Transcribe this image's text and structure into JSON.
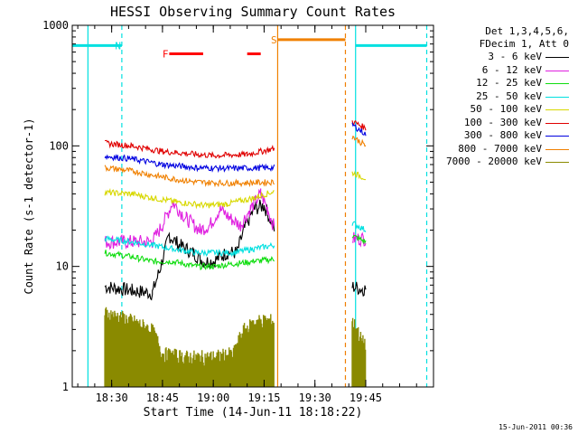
{
  "chart_data": {
    "type": "line",
    "title": "HESSI Observing Summary Count Rates",
    "xlabel": "Start Time (14-Jun-11 18:18:22)",
    "ylabel": "Count Rate (s-1 detector-1)",
    "yscale": "log",
    "ylim": [
      1,
      1000
    ],
    "ytick_values": [
      1,
      10,
      100,
      1000
    ],
    "ytick_labels": [
      "1",
      "10",
      "100",
      "1000"
    ],
    "xlim": [
      "18:18:22",
      "20:05:00"
    ],
    "xtick_labels": [
      "18:30",
      "18:45",
      "19:00",
      "19:15",
      "19:30",
      "19:45"
    ],
    "xtick_values": [
      "18:30",
      "18:45",
      "19:00",
      "19:15",
      "19:30",
      "19:45"
    ],
    "legend_header": [
      "Det 1,3,4,5,6,",
      "FDecim 1, Att 0"
    ],
    "legend_position": "right",
    "series": [
      {
        "name": "3 - 6 keV",
        "color": "#000000",
        "segments": [
          [
            [
              "18:28",
              "6.8"
            ],
            [
              "18:36",
              "6.3"
            ],
            [
              "18:42",
              "6.0"
            ],
            [
              "18:44",
              "9.0"
            ],
            [
              "18:47",
              "18"
            ],
            [
              "18:50",
              "15"
            ],
            [
              "18:54",
              "13"
            ],
            [
              "18:57",
              "11"
            ],
            [
              "19:00",
              "11"
            ],
            [
              "19:04",
              "13"
            ],
            [
              "19:07",
              "13"
            ],
            [
              "19:09",
              "20"
            ],
            [
              "19:12",
              "30"
            ],
            [
              "19:15",
              "32"
            ],
            [
              "19:17",
              "24"
            ],
            [
              "19:18",
              "19"
            ]
          ],
          [
            [
              "19:41",
              "6.8"
            ],
            [
              "19:44",
              "6.5"
            ],
            [
              "19:45",
              "6.5"
            ]
          ]
        ]
      },
      {
        "name": "6 - 12 keV",
        "color": "#e020e0",
        "segments": [
          [
            [
              "18:28",
              "16"
            ],
            [
              "18:36",
              "16"
            ],
            [
              "18:42",
              "16"
            ],
            [
              "18:45",
              "22"
            ],
            [
              "18:48",
              "34"
            ],
            [
              "18:52",
              "25"
            ],
            [
              "18:56",
              "20"
            ],
            [
              "18:59",
              "22"
            ],
            [
              "19:02",
              "30"
            ],
            [
              "19:05",
              "25"
            ],
            [
              "19:08",
              "22"
            ],
            [
              "19:11",
              "30"
            ],
            [
              "19:14",
              "40"
            ],
            [
              "19:16",
              "30"
            ],
            [
              "19:18",
              "21"
            ]
          ],
          [
            [
              "19:41",
              "17"
            ],
            [
              "19:45",
              "17"
            ]
          ]
        ]
      },
      {
        "name": "12 - 25 keV",
        "color": "#10dd10",
        "segments": [
          [
            [
              "18:28",
              "13"
            ],
            [
              "18:36",
              "12"
            ],
            [
              "18:42",
              "11"
            ],
            [
              "18:48",
              "11"
            ],
            [
              "18:55",
              "10"
            ],
            [
              "19:00",
              "10"
            ],
            [
              "19:06",
              "10.5"
            ],
            [
              "19:12",
              "11"
            ],
            [
              "19:18",
              "11.5"
            ]
          ],
          [
            [
              "19:41",
              "18"
            ],
            [
              "19:45",
              "16"
            ]
          ]
        ]
      },
      {
        "name": "25 - 50 keV",
        "color": "#00e0e0",
        "segments": [
          [
            [
              "18:28",
              "17"
            ],
            [
              "18:36",
              "16"
            ],
            [
              "18:42",
              "15"
            ],
            [
              "18:48",
              "14"
            ],
            [
              "18:55",
              "13"
            ],
            [
              "19:00",
              "13"
            ],
            [
              "19:06",
              "13"
            ],
            [
              "19:12",
              "14"
            ],
            [
              "19:18",
              "15"
            ]
          ],
          [
            [
              "19:41",
              "23"
            ],
            [
              "19:45",
              "20"
            ]
          ]
        ]
      },
      {
        "name": "50 - 100 keV",
        "color": "#d8d800",
        "segments": [
          [
            [
              "18:28",
              "41"
            ],
            [
              "18:36",
              "40"
            ],
            [
              "18:42",
              "37"
            ],
            [
              "18:50",
              "34"
            ],
            [
              "18:58",
              "32"
            ],
            [
              "19:04",
              "33"
            ],
            [
              "19:12",
              "37"
            ],
            [
              "19:18",
              "42"
            ]
          ],
          [
            [
              "19:41",
              "60"
            ],
            [
              "19:45",
              "54"
            ]
          ]
        ]
      },
      {
        "name": "100 - 300 keV",
        "color": "#e00000",
        "segments": [
          [
            [
              "18:28",
              "105"
            ],
            [
              "18:36",
              "100"
            ],
            [
              "18:45",
              "90"
            ],
            [
              "18:55",
              "85"
            ],
            [
              "19:00",
              "83"
            ],
            [
              "19:10",
              "85"
            ],
            [
              "19:18",
              "95"
            ]
          ],
          [
            [
              "19:41",
              "160"
            ],
            [
              "19:45",
              "140"
            ]
          ]
        ]
      },
      {
        "name": "300 - 800 keV",
        "color": "#0000e0",
        "segments": [
          [
            [
              "18:28",
              "82"
            ],
            [
              "18:36",
              "78"
            ],
            [
              "18:45",
              "70"
            ],
            [
              "18:55",
              "66"
            ],
            [
              "19:05",
              "65"
            ],
            [
              "19:18",
              "66"
            ]
          ],
          [
            [
              "19:41",
              "150"
            ],
            [
              "19:45",
              "125"
            ]
          ]
        ]
      },
      {
        "name": "800 - 7000 keV",
        "color": "#f08000",
        "segments": [
          [
            [
              "18:28",
              "66"
            ],
            [
              "18:36",
              "62"
            ],
            [
              "18:45",
              "55"
            ],
            [
              "18:55",
              "50"
            ],
            [
              "19:05",
              "49"
            ],
            [
              "19:18",
              "50"
            ]
          ],
          [
            [
              "19:41",
              "120"
            ],
            [
              "19:45",
              "100"
            ]
          ]
        ]
      },
      {
        "name": "7000 - 20000 keV",
        "color": "#8a8a00",
        "segments": [
          [
            [
              "18:28",
              "3.5"
            ],
            [
              "18:36",
              "3.0"
            ],
            [
              "18:42",
              "2.5"
            ],
            [
              "18:45",
              "1.6"
            ],
            [
              "18:52",
              "1.5"
            ],
            [
              "19:00",
              "1.5"
            ],
            [
              "19:06",
              "1.6"
            ],
            [
              "19:09",
              "2.5"
            ],
            [
              "19:13",
              "3.0"
            ],
            [
              "19:18",
              "3.0"
            ]
          ],
          [
            [
              "19:41",
              "3.0"
            ],
            [
              "19:44",
              "2.0"
            ],
            [
              "19:45",
              "2.0"
            ]
          ]
        ]
      }
    ],
    "annotations": [
      {
        "text": "N",
        "color": "#00e0e0",
        "x": "18:31",
        "y": "680"
      },
      {
        "text": "F",
        "color": "#ff0000",
        "x": "18:45",
        "y": "580"
      },
      {
        "text": "S",
        "color": "#f08000",
        "x": "19:17",
        "y": "760"
      }
    ],
    "flag_bars": [
      {
        "label": "N",
        "color": "#00e0e0",
        "y": "680",
        "ranges": [
          [
            "18:18:22",
            "18:33"
          ],
          [
            "19:42",
            "20:03"
          ]
        ]
      },
      {
        "label": "F",
        "color": "#ff0000",
        "y": "580",
        "ranges": [
          [
            "18:47",
            "18:57"
          ],
          [
            "19:10",
            "19:14"
          ]
        ]
      },
      {
        "label": "S",
        "color": "#f08000",
        "y": "760",
        "ranges": [
          [
            "19:19",
            "19:39"
          ]
        ]
      }
    ],
    "vertical_markers": [
      {
        "x": "18:23",
        "color": "#00e0e0",
        "style": "solid"
      },
      {
        "x": "18:33",
        "color": "#00e0e0",
        "style": "dashed"
      },
      {
        "x": "19:19",
        "color": "#f08000",
        "style": "solid"
      },
      {
        "x": "19:39",
        "color": "#f08000",
        "style": "dashed"
      },
      {
        "x": "19:42",
        "color": "#00e0e0",
        "style": "solid"
      },
      {
        "x": "20:03",
        "color": "#00e0e0",
        "style": "dashed"
      }
    ],
    "grid": false
  },
  "footer": "15-Jun-2011 00:36",
  "legend": {
    "header_line1": "Det 1,3,4,5,6,",
    "header_line2": "FDecim 1, Att 0"
  }
}
